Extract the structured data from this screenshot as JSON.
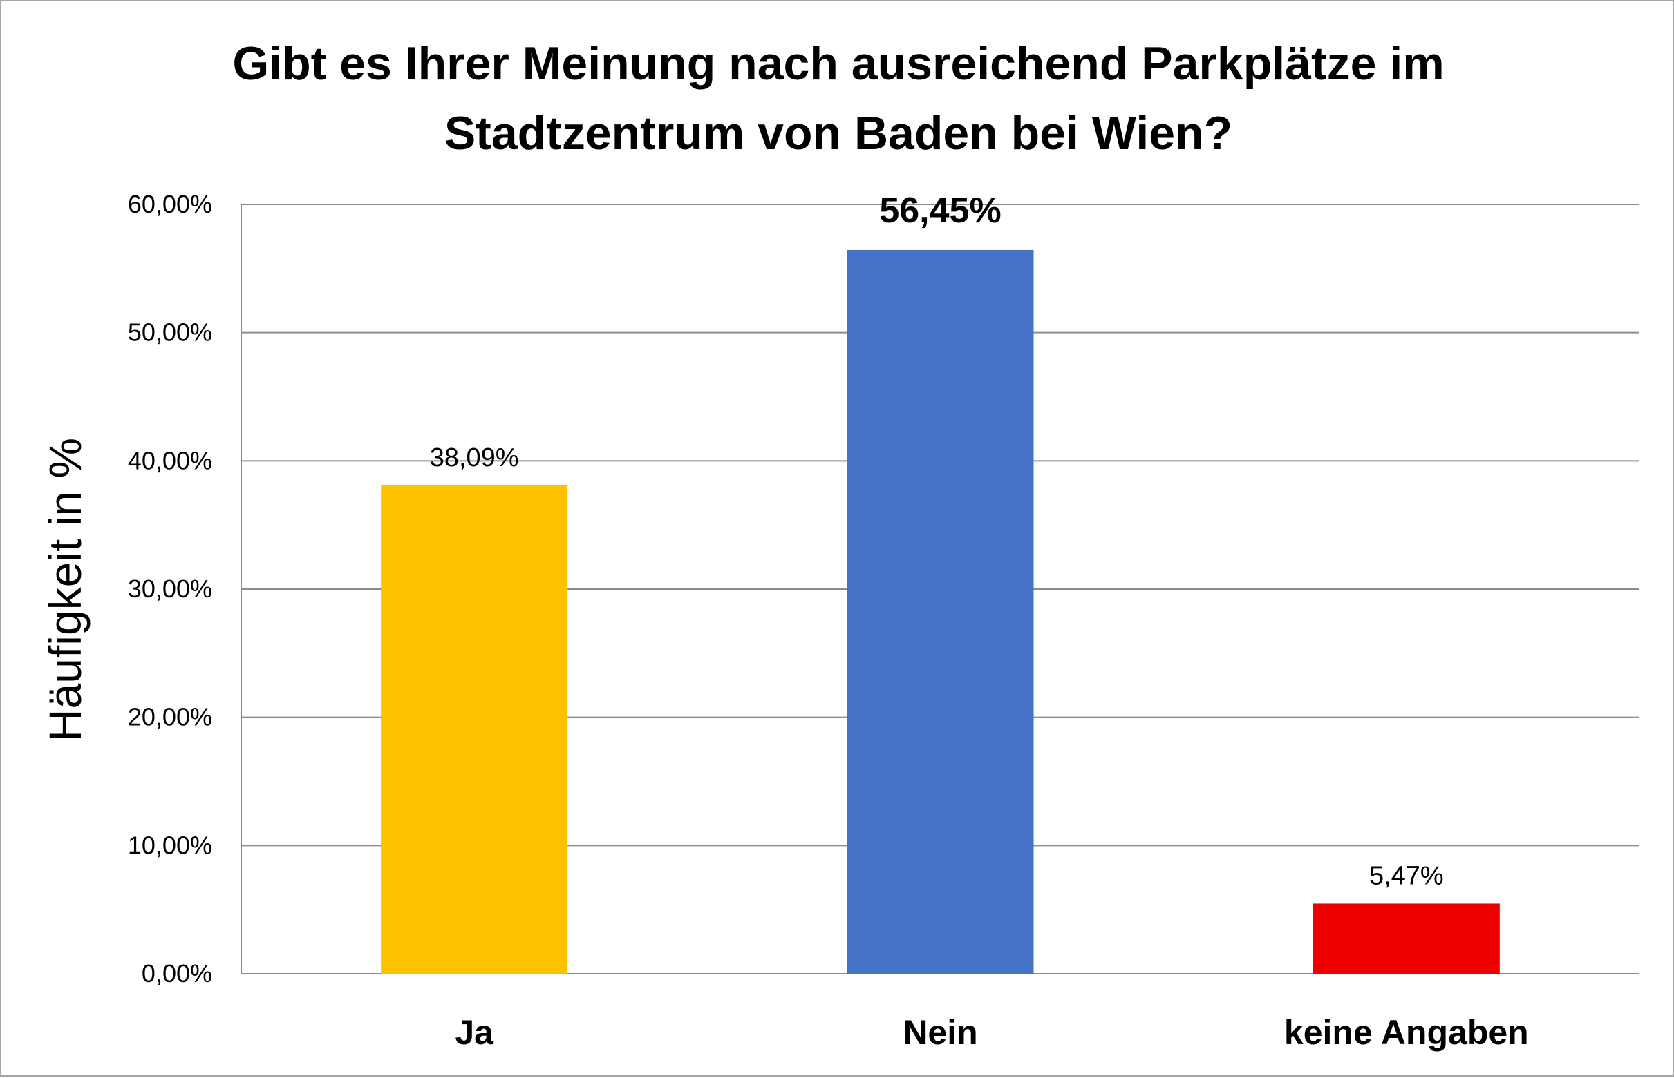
{
  "chart_data": {
    "type": "bar",
    "title_lines": [
      "Gibt es Ihrer Meinung nach ausreichend Parkplätze im",
      "Stadtzentrum von Baden bei Wien?"
    ],
    "ylabel": "Häufigkeit in %",
    "xlabel": "",
    "categories": [
      "Ja",
      "Nein",
      "keine Angaben"
    ],
    "values": [
      38.09,
      56.45,
      5.47
    ],
    "value_labels": [
      "38,09%",
      "56,45%",
      "5,47%"
    ],
    "bar_colors": [
      "#FFC000",
      "#4472C4",
      "#EE0000"
    ],
    "emphasized_label_index": 1,
    "ylim": [
      0,
      60
    ],
    "yticks": [
      0,
      10,
      20,
      30,
      40,
      50,
      60
    ],
    "ytick_labels": [
      "0,00%",
      "10,00%",
      "20,00%",
      "30,00%",
      "40,00%",
      "50,00%",
      "60,00%"
    ],
    "grid": true,
    "legend": "none"
  }
}
